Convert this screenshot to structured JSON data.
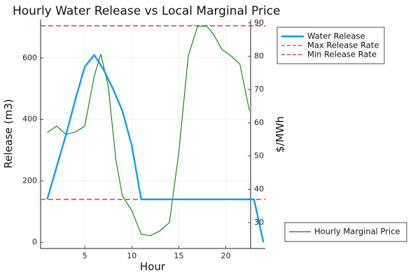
{
  "chart_data": {
    "type": "line",
    "title": "Hourly Water Release vs Local Marginal Price",
    "xlabel": "Hour",
    "ylabel": "Release (m3)",
    "y2label": "$/MWh",
    "xlim": [
      0.3,
      24.2
    ],
    "ylim": [
      -20,
      725
    ],
    "y2lim": [
      22.2,
      91
    ],
    "xticks": [
      5,
      10,
      15,
      20
    ],
    "yticks": [
      0,
      200,
      400,
      600
    ],
    "y2ticks": [
      30,
      40,
      50,
      60,
      70,
      80,
      90
    ],
    "grid": true,
    "series": [
      {
        "name": "Water Release",
        "axis": "left",
        "color": "#009af9",
        "x": [
          1,
          2,
          3,
          4,
          5,
          6,
          7,
          8,
          9,
          10,
          11,
          12,
          13,
          14,
          15,
          16,
          17,
          18,
          19,
          20,
          21,
          22,
          23,
          24
        ],
        "y": [
          140,
          245,
          350,
          465,
          572,
          610,
          562,
          500,
          428,
          315,
          140,
          140,
          140,
          140,
          140,
          140,
          140,
          140,
          140,
          140,
          140,
          140,
          140,
          0
        ]
      },
      {
        "name": "Hourly Marginal Price",
        "axis": "right",
        "color": "#008000",
        "x": [
          1,
          2,
          3,
          4,
          5,
          6,
          6.7,
          7.5,
          8.3,
          9,
          10,
          11,
          12,
          13,
          14,
          15,
          16,
          17,
          18,
          18.7,
          19.6,
          20.6,
          21.5,
          22.5
        ],
        "y": [
          57,
          59,
          56.5,
          57.2,
          59,
          74,
          80.6,
          71,
          49,
          38,
          33.6,
          26.5,
          26.1,
          27.5,
          30,
          51,
          80,
          89,
          89,
          86.5,
          82,
          80,
          77.6,
          63.7
        ]
      }
    ],
    "hlines": [
      {
        "name": "Max Release Rate",
        "value": 705,
        "color": "#e24a4a"
      },
      {
        "name": "Min Release Rate",
        "value": 140,
        "color": "#e24a4a"
      }
    ],
    "legend_main": "top-right",
    "legend_secondary": "bottom-right"
  }
}
